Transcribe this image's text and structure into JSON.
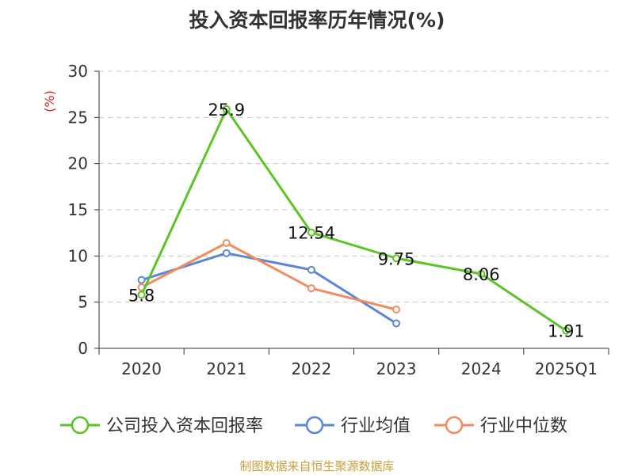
{
  "chart_data": {
    "type": "line",
    "title": "投入资本回报率历年情况(%)",
    "ylabel": "(%)",
    "xlabel": "",
    "categories": [
      "2020",
      "2021",
      "2022",
      "2023",
      "2024",
      "2025Q1"
    ],
    "ylim": [
      0,
      30
    ],
    "yticks": [
      0,
      5,
      10,
      15,
      20,
      25,
      30
    ],
    "grid": true,
    "legend_position": "bottom",
    "series": [
      {
        "name": "公司投入资本回报率",
        "color": "#5cc424",
        "values": [
          5.8,
          25.9,
          12.54,
          9.75,
          8.06,
          1.91
        ],
        "labels": [
          "5.8",
          "25.9",
          "12.54",
          "9.75",
          "8.06",
          "1.91"
        ]
      },
      {
        "name": "行业均值",
        "color": "#5b86d8",
        "values": [
          7.4,
          10.3,
          8.5,
          2.7,
          null,
          null
        ]
      },
      {
        "name": "行业中位数",
        "color": "#f28c5e",
        "values": [
          6.6,
          11.4,
          6.5,
          4.2,
          null,
          null
        ]
      }
    ]
  },
  "source": "制图数据来自恒生聚源数据库"
}
